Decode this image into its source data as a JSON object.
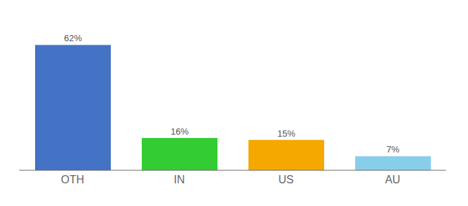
{
  "chart_data": {
    "type": "bar",
    "categories": [
      "OTH",
      "IN",
      "US",
      "AU"
    ],
    "values": [
      62,
      16,
      15,
      7
    ],
    "value_labels": [
      "62%",
      "16%",
      "15%",
      "7%"
    ],
    "colors": [
      "#4472c4",
      "#33cc33",
      "#f5a800",
      "#87ceeb"
    ],
    "ylim": [
      0,
      72
    ],
    "data_labels": true,
    "tick_labels": "x"
  }
}
